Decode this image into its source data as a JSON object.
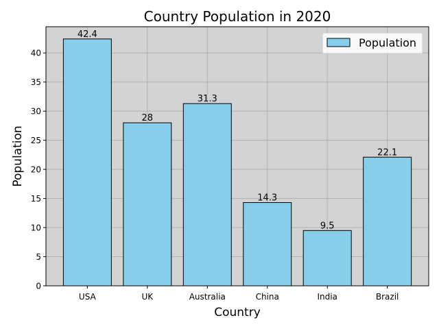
{
  "chart_data": {
    "type": "bar",
    "title": "Country Population in 2020",
    "xlabel": "Country",
    "ylabel": "Population",
    "categories": [
      "USA",
      "UK",
      "Australia",
      "China",
      "India",
      "Brazil"
    ],
    "values": [
      42.4,
      28,
      31.3,
      14.3,
      9.5,
      22.1
    ],
    "value_labels": [
      "42.4",
      "28",
      "31.3",
      "14.3",
      "9.5",
      "22.1"
    ],
    "ylim": [
      0,
      44.5
    ],
    "yticks": [
      0,
      5,
      10,
      15,
      20,
      25,
      30,
      35,
      40
    ],
    "grid": true,
    "legend": {
      "entries": [
        "Population"
      ],
      "placement": "top-right"
    },
    "colors": {
      "bar_fill": "#87CEEB",
      "bar_edge": "#000000",
      "plot_background": "#D3D3D3",
      "grid": "#B0B0B0"
    }
  }
}
